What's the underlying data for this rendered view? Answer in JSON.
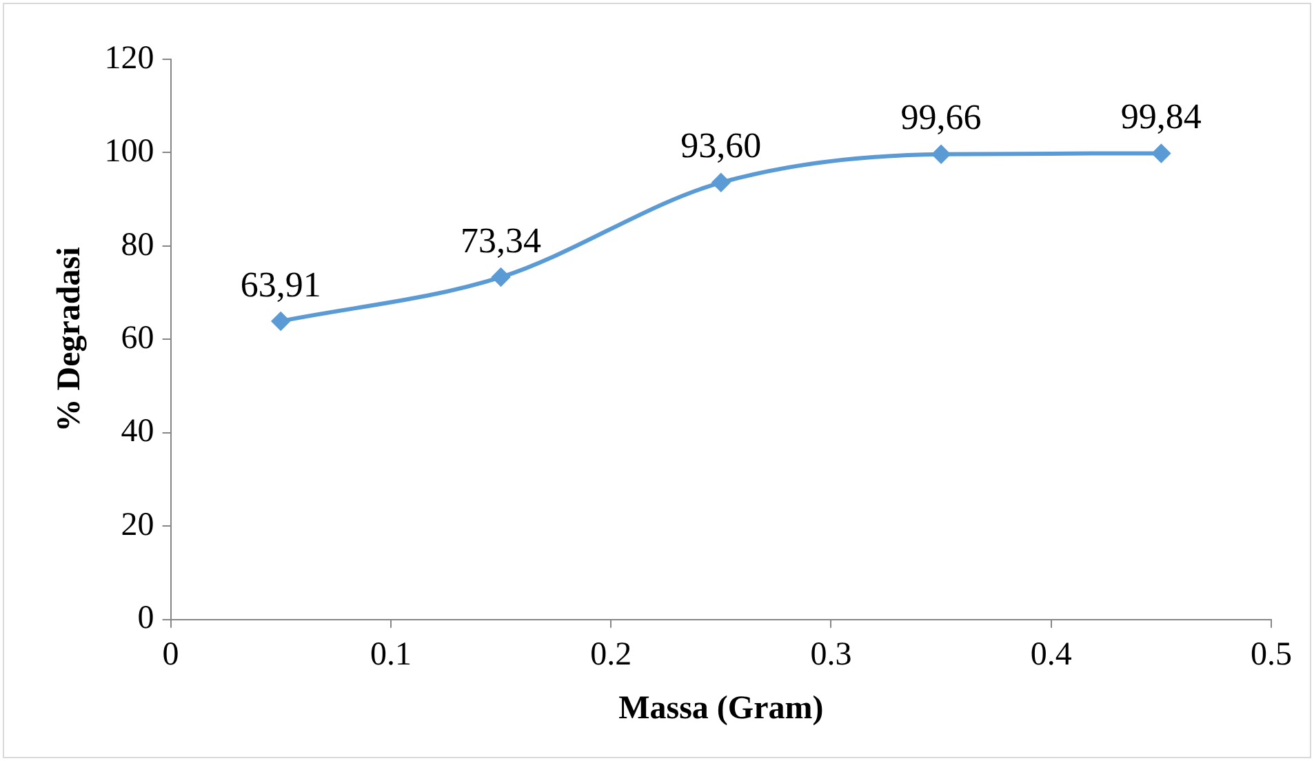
{
  "chart_data": {
    "type": "line",
    "xlabel": "Massa (Gram)",
    "ylabel": "% Degradasi",
    "x": [
      0.05,
      0.15,
      0.25,
      0.35,
      0.45
    ],
    "series": [
      {
        "color": "#5b9bd5",
        "values": [
          63.91,
          73.34,
          93.6,
          99.66,
          99.84
        ],
        "value_labels": [
          "63,91",
          "73,34",
          "93,60",
          "99,66",
          "99,84"
        ]
      }
    ],
    "xlim": [
      0,
      0.5
    ],
    "xticks": [
      0,
      0.1,
      0.2,
      0.3,
      0.4,
      0.5
    ],
    "ylim": [
      0,
      120
    ],
    "yticks": [
      0,
      20,
      40,
      60,
      80,
      100,
      120
    ],
    "grid": false,
    "legend": false,
    "marker": "diamond",
    "line_style": "solid"
  }
}
